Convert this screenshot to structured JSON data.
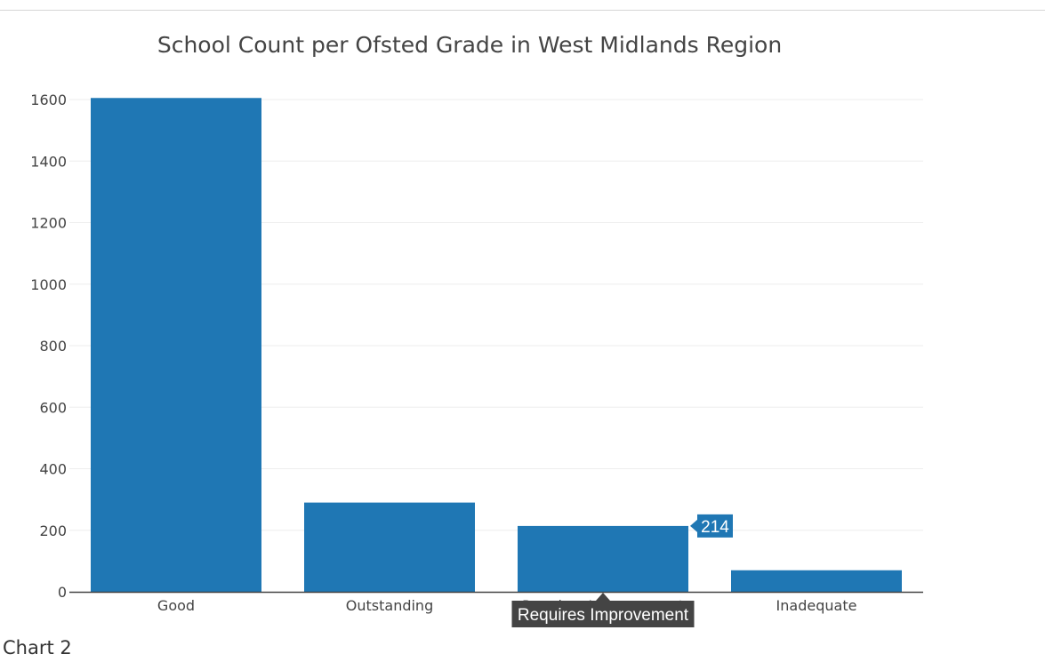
{
  "chart_data": {
    "type": "bar",
    "title": "School Count per Ofsted Grade in West Midlands Region",
    "xlabel": "",
    "ylabel": "",
    "categories": [
      "Good",
      "Outstanding",
      "Requires Improvement",
      "Inadequate"
    ],
    "values": [
      1605,
      290,
      214,
      70
    ],
    "ylim": [
      0,
      1600
    ],
    "yticks": [
      0,
      200,
      400,
      600,
      800,
      1000,
      1200,
      1400,
      1600
    ],
    "grid": true,
    "bar_color": "#1f77b4",
    "hover": {
      "category": "Requires Improvement",
      "value_label": "214",
      "category_label": "Requires Improvement"
    }
  },
  "caption": "Chart 2"
}
